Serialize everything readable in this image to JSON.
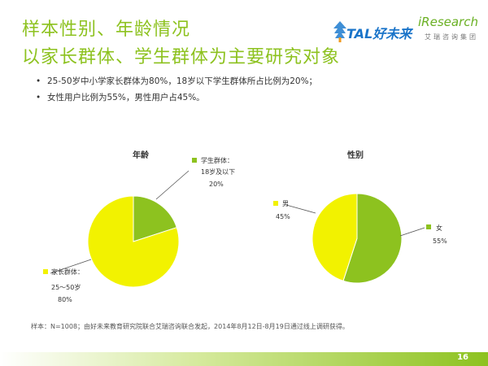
{
  "header": {
    "title_line1": "样本性别、年龄情况",
    "title_line2": "以家长群体、学生群体为主要研究对象"
  },
  "logos": {
    "tal_text": "TAL好未来",
    "iresearch_text": "iResearch",
    "iresearch_sub": "艾瑞咨询集团"
  },
  "bullets": [
    "25-50岁中小学家长群体为80%，18岁以下学生群体所占比例为20%；",
    "女性用户比例为55%，男性用户占45%。"
  ],
  "colors": {
    "green": "#8dc21f",
    "yellow": "#f2f200",
    "title_green": "#8dc21f"
  },
  "chart_data": [
    {
      "type": "pie",
      "title": "年龄",
      "slices": [
        {
          "label_line1": "学生群体：",
          "label_line2": "18岁及以下",
          "value": 20,
          "value_label": "20%",
          "color": "#8dc21f"
        },
        {
          "label_line1": "家长群体：",
          "label_line2": "25～50岁",
          "value": 80,
          "value_label": "80%",
          "color": "#f2f200"
        }
      ]
    },
    {
      "type": "pie",
      "title": "性别",
      "slices": [
        {
          "label_line1": "女",
          "value": 55,
          "value_label": "55%",
          "color": "#8dc21f"
        },
        {
          "label_line1": "男",
          "value": 45,
          "value_label": "45%",
          "color": "#f2f200"
        }
      ]
    }
  ],
  "footnote": "样本：N=1008；由好未来教育研究院联合艾瑞咨询联合发起，2014年8月12日-8月19日通过线上调研获得。",
  "page_number": "16"
}
